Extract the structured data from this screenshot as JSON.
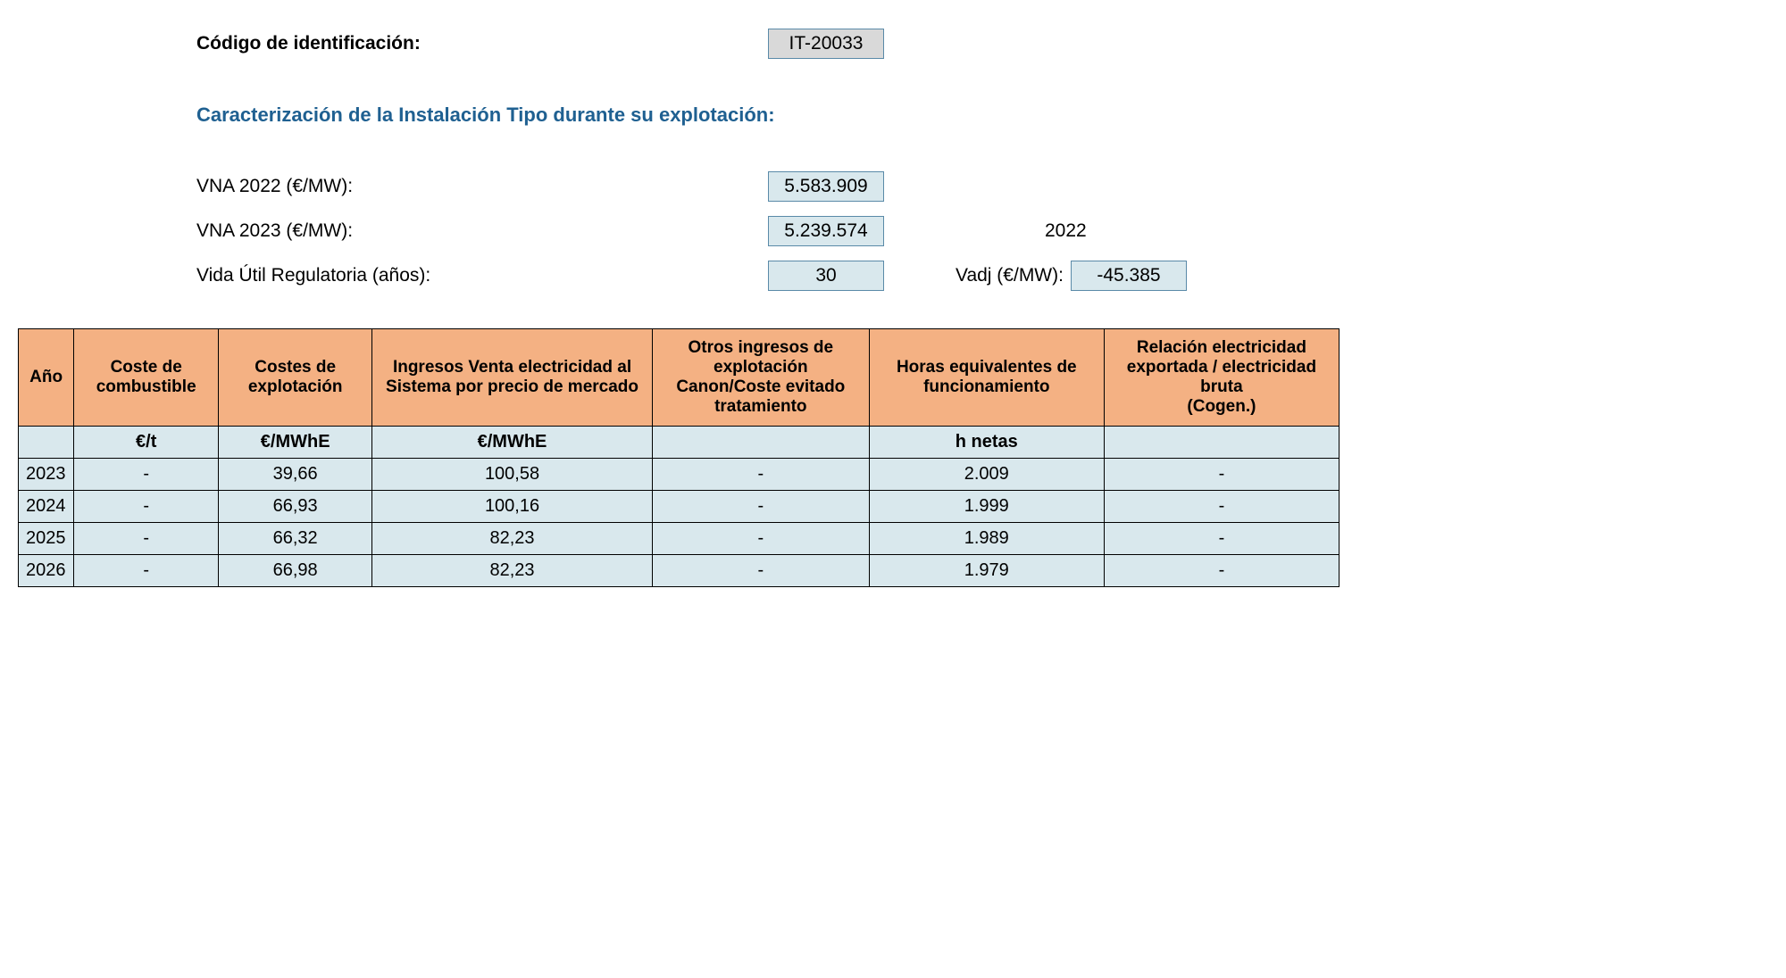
{
  "header": {
    "id_label": "Código de identificación:",
    "id_value": "IT-20033",
    "section_title": "Caracterización de la Instalación Tipo durante su explotación:",
    "vna2022_label": "VNA 2022 (€/MW):",
    "vna2022_value": "5.583.909",
    "vna2023_label": "VNA 2023 (€/MW):",
    "vna2023_value": "5.239.574",
    "vida_util_label": "Vida Útil Regulatoria (años):",
    "vida_util_value": "30",
    "year_extra": "2022",
    "vadj_label": "Vadj (€/MW):",
    "vadj_value": "-45.385"
  },
  "table": {
    "columns": [
      "Año",
      "Coste de combustible",
      "Costes de explotación",
      "Ingresos Venta electricidad al Sistema por precio de mercado",
      "Otros ingresos de explotación Canon/Coste evitado tratamiento",
      "Horas equivalentes de funcionamiento",
      "Relación electricidad exportada / electricidad bruta\n(Cogen.)"
    ],
    "units": [
      "",
      "€/t",
      "€/MWhE",
      "€/MWhE",
      "",
      "h netas",
      ""
    ],
    "rows": [
      [
        "2023",
        "-",
        "39,66",
        "100,58",
        "-",
        "2.009",
        "-"
      ],
      [
        "2024",
        "-",
        "66,93",
        "100,16",
        "-",
        "1.999",
        "-"
      ],
      [
        "2025",
        "-",
        "66,32",
        "82,23",
        "-",
        "1.989",
        "-"
      ],
      [
        "2026",
        "-",
        "66,98",
        "82,23",
        "-",
        "1.979",
        "-"
      ]
    ],
    "col_widths": [
      "60px",
      "160px",
      "170px",
      "310px",
      "240px",
      "260px",
      "260px"
    ],
    "header_bg": "#f4b183",
    "cell_bg": "#d9e8ed",
    "border_color": "#000000"
  }
}
